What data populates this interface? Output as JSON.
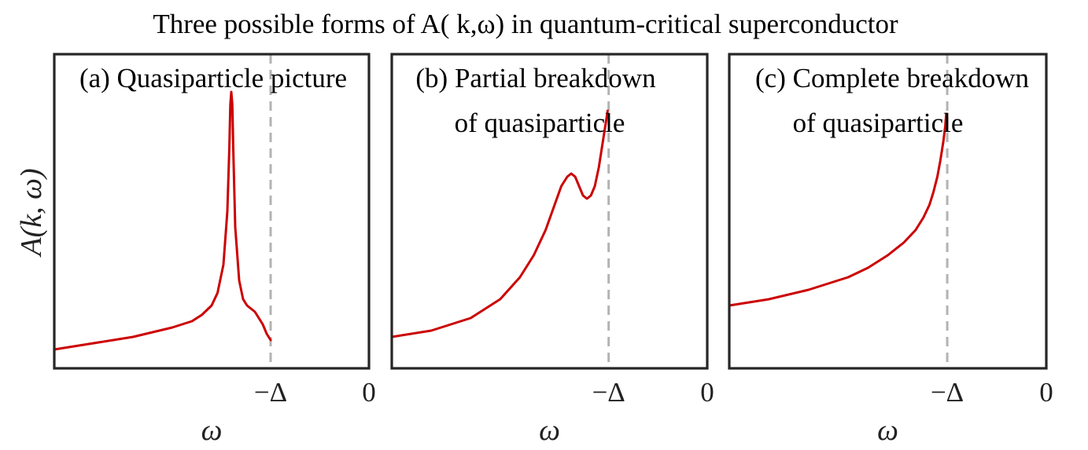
{
  "figure_title": "Three possible forms of A( k,ω) in quantum-critical superconductor",
  "ylabel": "A(k, ω)",
  "colors": {
    "curve": "#cc0000",
    "gap_line": "#b3b3b3",
    "frame": "#262626"
  },
  "chart_data": [
    {
      "type": "line",
      "panel_label": [
        "(a) Quasiparticle picture"
      ],
      "xlabel": "ω",
      "x_ticks": [
        "−Δ",
        "0"
      ],
      "xlim": [
        -1.6,
        0
      ],
      "ylim": [
        0,
        1
      ],
      "grid": false,
      "y_ticks_shown": false,
      "gap_position": -0.5,
      "series": [
        {
          "x": [
            -1.6,
            -1.4,
            -1.2,
            -1.0,
            -0.9,
            -0.85,
            -0.8,
            -0.77,
            -0.74,
            -0.72,
            -0.71,
            -0.705,
            -0.7,
            -0.695,
            -0.69,
            -0.68,
            -0.66,
            -0.64,
            -0.62,
            -0.6,
            -0.58,
            -0.56,
            -0.54,
            -0.52,
            -0.5
          ],
          "y": [
            0.06,
            0.08,
            0.1,
            0.13,
            0.15,
            0.17,
            0.2,
            0.24,
            0.33,
            0.5,
            0.7,
            0.84,
            0.88,
            0.84,
            0.7,
            0.45,
            0.28,
            0.22,
            0.2,
            0.19,
            0.18,
            0.16,
            0.14,
            0.11,
            0.09
          ]
        }
      ]
    },
    {
      "type": "line",
      "panel_label": [
        "(b) Partial breakdown",
        "of quasiparticle"
      ],
      "xlabel": "ω",
      "x_ticks": [
        "−Δ",
        "0"
      ],
      "xlim": [
        -1.6,
        0
      ],
      "ylim": [
        0,
        1
      ],
      "grid": false,
      "y_ticks_shown": false,
      "gap_position": -0.5,
      "series": [
        {
          "x": [
            -1.6,
            -1.4,
            -1.2,
            -1.05,
            -0.95,
            -0.88,
            -0.82,
            -0.78,
            -0.74,
            -0.71,
            -0.69,
            -0.67,
            -0.65,
            -0.63,
            -0.61,
            -0.59,
            -0.57,
            -0.55,
            -0.54,
            -0.53,
            -0.52,
            -0.51,
            -0.505
          ],
          "y": [
            0.1,
            0.12,
            0.16,
            0.22,
            0.29,
            0.36,
            0.44,
            0.51,
            0.58,
            0.61,
            0.62,
            0.61,
            0.58,
            0.55,
            0.54,
            0.55,
            0.58,
            0.64,
            0.68,
            0.72,
            0.76,
            0.8,
            0.82
          ]
        }
      ]
    },
    {
      "type": "line",
      "panel_label": [
        "(c) Complete breakdown",
        "of quasiparticle"
      ],
      "xlabel": "ω",
      "x_ticks": [
        "−Δ",
        "0"
      ],
      "xlim": [
        -1.6,
        0
      ],
      "ylim": [
        0,
        1
      ],
      "grid": false,
      "y_ticks_shown": false,
      "gap_position": -0.5,
      "series": [
        {
          "x": [
            -1.6,
            -1.4,
            -1.2,
            -1.0,
            -0.9,
            -0.8,
            -0.72,
            -0.66,
            -0.62,
            -0.59,
            -0.57,
            -0.55,
            -0.535,
            -0.52,
            -0.51,
            -0.505
          ],
          "y": [
            0.2,
            0.22,
            0.25,
            0.29,
            0.32,
            0.36,
            0.4,
            0.44,
            0.48,
            0.52,
            0.56,
            0.61,
            0.66,
            0.72,
            0.77,
            0.81
          ]
        }
      ]
    }
  ]
}
